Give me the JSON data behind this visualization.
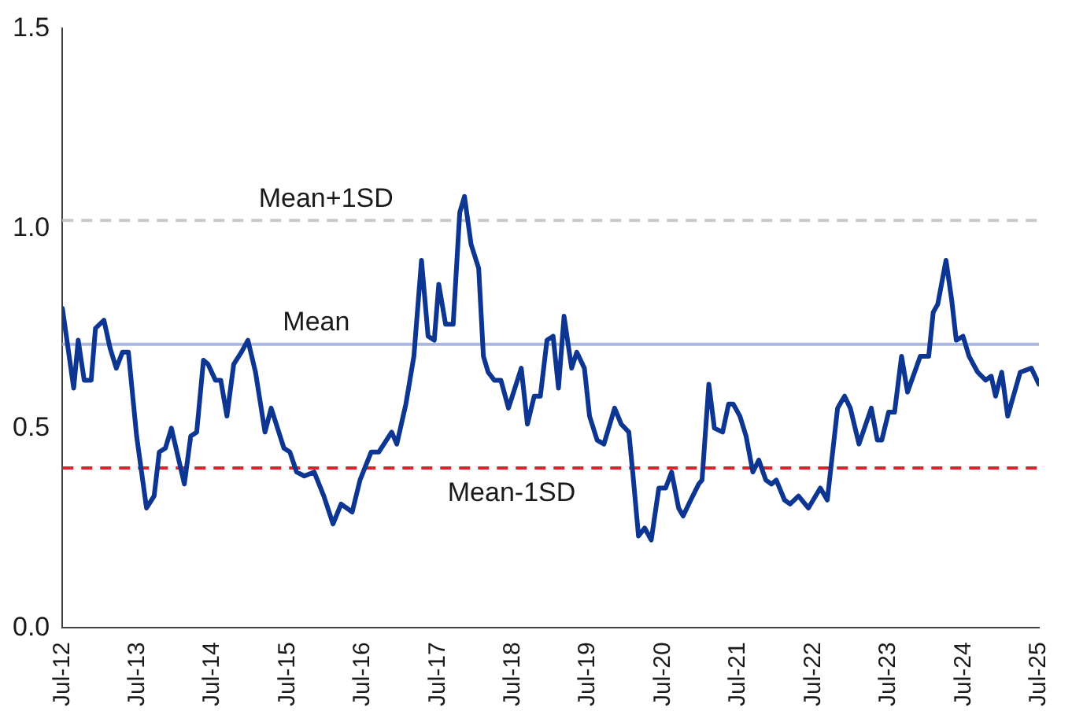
{
  "chart_data": {
    "type": "line",
    "x": [
      "2012-07-01",
      "2012-08-25",
      "2012-09-16",
      "2012-10-15",
      "2012-11-18",
      "2012-12-09",
      "2013-01-19",
      "2013-02-18",
      "2013-03-20",
      "2013-04-19",
      "2013-05-18",
      "2013-06-27",
      "2013-08-14",
      "2013-09-20",
      "2013-10-15",
      "2013-11-14",
      "2013-12-13",
      "2014-02-14",
      "2014-03-17",
      "2014-04-15",
      "2014-05-18",
      "2014-06-09",
      "2014-07-15",
      "2014-08-10",
      "2014-09-09",
      "2014-10-12",
      "2014-11-18",
      "2014-12-20",
      "2015-01-26",
      "2015-03-13",
      "2015-04-12",
      "2015-06-13",
      "2015-07-12",
      "2015-08-14",
      "2015-09-20",
      "2015-11-07",
      "2015-12-24",
      "2016-02-07",
      "2016-03-17",
      "2016-05-10",
      "2016-06-17",
      "2016-08-10",
      "2016-09-16",
      "2016-11-18",
      "2016-12-13",
      "2017-01-26",
      "2017-03-06",
      "2017-04-12",
      "2017-05-14",
      "2017-06-13",
      "2017-07-05",
      "2017-08-07",
      "2017-09-13",
      "2017-10-15",
      "2017-11-07",
      "2017-12-09",
      "2018-01-15",
      "2018-02-07",
      "2018-03-02",
      "2018-04-01",
      "2018-05-03",
      "2018-06-09",
      "2018-08-10",
      "2018-09-09",
      "2018-10-12",
      "2018-11-11",
      "2018-12-13",
      "2019-01-12",
      "2019-02-07",
      "2019-03-06",
      "2019-04-12",
      "2019-05-07",
      "2019-06-13",
      "2019-07-08",
      "2019-08-14",
      "2019-09-16",
      "2019-11-07",
      "2019-12-09",
      "2020-01-15",
      "2020-02-03",
      "2020-03-02",
      "2020-04-01",
      "2020-05-03",
      "2020-06-09",
      "2020-07-12",
      "2020-08-10",
      "2020-09-13",
      "2020-10-05",
      "2020-11-11",
      "2020-12-20",
      "2021-01-05",
      "2021-02-07",
      "2021-03-06",
      "2021-04-15",
      "2021-05-14",
      "2021-06-06",
      "2021-07-08",
      "2021-08-07",
      "2021-09-09",
      "2021-10-08",
      "2021-11-11",
      "2021-12-09",
      "2022-01-01",
      "2022-02-10",
      "2022-03-09",
      "2022-04-19",
      "2022-06-06",
      "2022-08-03",
      "2022-09-06",
      "2022-10-26",
      "2022-11-29",
      "2022-12-27",
      "2023-02-07",
      "2023-04-08",
      "2023-05-07",
      "2023-05-29",
      "2023-07-01",
      "2023-07-30",
      "2023-09-02",
      "2023-10-01",
      "2023-12-02",
      "2024-01-12",
      "2024-02-03",
      "2024-02-25",
      "2024-04-05",
      "2024-05-03",
      "2024-05-25",
      "2024-06-27",
      "2024-07-26",
      "2024-09-06",
      "2024-10-15",
      "2024-11-11",
      "2024-12-02",
      "2025-01-01",
      "2025-01-30",
      "2025-04-01",
      "2025-05-25",
      "2025-07-01"
    ],
    "series": [
      {
        "color": "#0d3592",
        "values": [
          0.8,
          0.6,
          0.72,
          0.62,
          0.62,
          0.75,
          0.77,
          0.7,
          0.65,
          0.69,
          0.69,
          0.48,
          0.3,
          0.33,
          0.44,
          0.45,
          0.5,
          0.36,
          0.48,
          0.49,
          0.67,
          0.66,
          0.62,
          0.62,
          0.53,
          0.66,
          0.69,
          0.72,
          0.64,
          0.49,
          0.55,
          0.45,
          0.44,
          0.39,
          0.38,
          0.39,
          0.33,
          0.26,
          0.31,
          0.29,
          0.37,
          0.44,
          0.44,
          0.49,
          0.46,
          0.56,
          0.68,
          0.92,
          0.73,
          0.72,
          0.86,
          0.76,
          0.76,
          1.04,
          1.08,
          0.96,
          0.9,
          0.68,
          0.64,
          0.62,
          0.62,
          0.55,
          0.65,
          0.51,
          0.58,
          0.58,
          0.72,
          0.73,
          0.6,
          0.78,
          0.65,
          0.69,
          0.65,
          0.53,
          0.47,
          0.46,
          0.55,
          0.51,
          0.49,
          0.39,
          0.23,
          0.25,
          0.22,
          0.35,
          0.35,
          0.39,
          0.3,
          0.28,
          0.32,
          0.36,
          0.37,
          0.61,
          0.5,
          0.49,
          0.56,
          0.56,
          0.53,
          0.48,
          0.39,
          0.42,
          0.37,
          0.36,
          0.37,
          0.32,
          0.31,
          0.33,
          0.3,
          0.35,
          0.32,
          0.55,
          0.58,
          0.55,
          0.46,
          0.55,
          0.47,
          0.47,
          0.54,
          0.54,
          0.68,
          0.59,
          0.68,
          0.68,
          0.79,
          0.81,
          0.92,
          0.82,
          0.72,
          0.73,
          0.68,
          0.64,
          0.62,
          0.63,
          0.58,
          0.64,
          0.53,
          0.64,
          0.65,
          0.61
        ]
      }
    ],
    "xlim": [
      "2012-07",
      "2025-07"
    ],
    "xticks": [
      {
        "value": "2012-07",
        "label": "Jul-12"
      },
      {
        "value": "2013-07",
        "label": "Jul-13"
      },
      {
        "value": "2014-07",
        "label": "Jul-14"
      },
      {
        "value": "2015-07",
        "label": "Jul-15"
      },
      {
        "value": "2016-07",
        "label": "Jul-16"
      },
      {
        "value": "2017-07",
        "label": "Jul-17"
      },
      {
        "value": "2018-07",
        "label": "Jul-18"
      },
      {
        "value": "2019-07",
        "label": "Jul-19"
      },
      {
        "value": "2020-07",
        "label": "Jul-20"
      },
      {
        "value": "2021-07",
        "label": "Jul-21"
      },
      {
        "value": "2022-07",
        "label": "Jul-22"
      },
      {
        "value": "2023-07",
        "label": "Jul-23"
      },
      {
        "value": "2024-07",
        "label": "Jul-24"
      },
      {
        "value": "2025-07",
        "label": "Jul-25"
      }
    ],
    "ylim": [
      0,
      1.5
    ],
    "yticks": [
      {
        "value": 0,
        "label": "0.0"
      },
      {
        "value": 0.5,
        "label": "0.5"
      },
      {
        "value": 1,
        "label": "1.0"
      },
      {
        "value": 1.5,
        "label": "1.5"
      }
    ],
    "grid": false,
    "legend": false,
    "marker": "none",
    "line_style": "solid",
    "ref_lines": [
      {
        "axis": "y",
        "value": 1.02,
        "label": "Mean+1SD",
        "color": "#c8c8c8",
        "line_style": "dashed"
      },
      {
        "axis": "y",
        "value": 0.71,
        "label": "Mean",
        "color": "#a9b8dc",
        "line_style": "solid"
      },
      {
        "axis": "y",
        "value": 0.4,
        "label": "Mean-1SD",
        "color": "#e0202a",
        "line_style": "dashed"
      }
    ]
  }
}
